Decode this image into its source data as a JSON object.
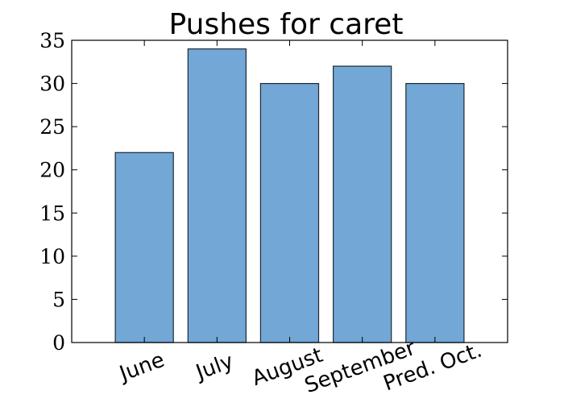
{
  "chart_data": {
    "type": "bar",
    "title": "Pushes for caret",
    "xlabel": "",
    "ylabel": "",
    "categories": [
      "June",
      "July",
      "August",
      "September",
      "Pred. Oct."
    ],
    "values": [
      22,
      34,
      30,
      32,
      30
    ],
    "ylim": [
      0,
      35
    ],
    "yticks": [
      0,
      5,
      10,
      15,
      20,
      25,
      30,
      35
    ],
    "grid": false,
    "bar_color": "#72a7d6",
    "bar_edge_color": "#1f2a36",
    "x_tick_rotation_deg": 20
  }
}
